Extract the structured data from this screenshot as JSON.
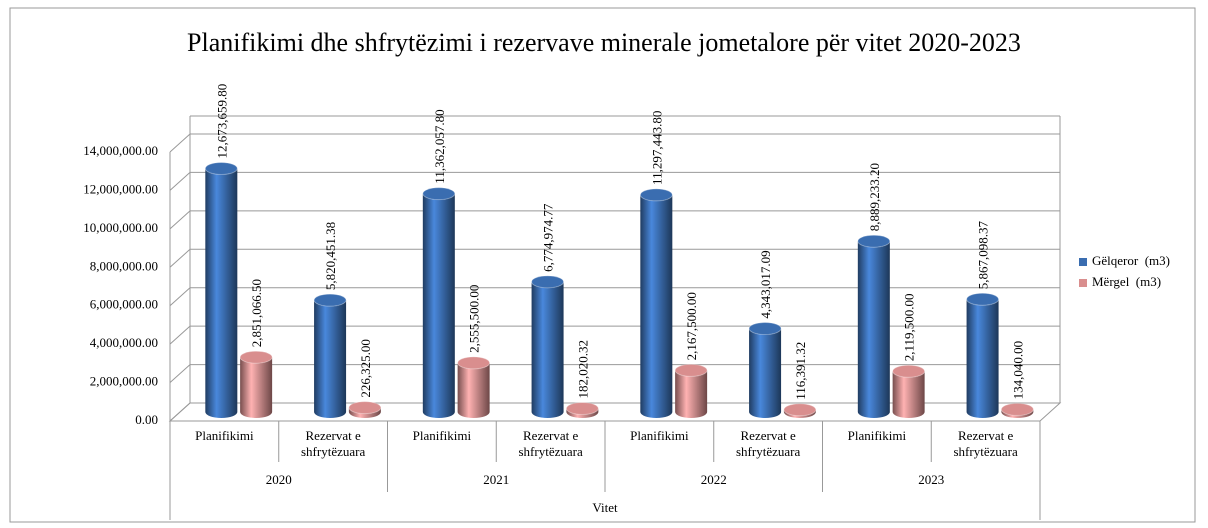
{
  "chart_data": {
    "type": "bar3d",
    "title": "Planifikimi dhe shfrytëzimi i rezervave minerale jometalore për vitet 2020-2023",
    "x_label": "Vitet",
    "categories": [
      "Planifikimi",
      "Rezervat e shfrytëzuara",
      "Planifikimi",
      "Rezervat e shfrytëzuara",
      "Planifikimi",
      "Rezervat e shfrytëzuara",
      "Planifikimi",
      "Rezervat e shfrytëzuara"
    ],
    "groups": [
      "2020",
      "2021",
      "2022",
      "2023"
    ],
    "series": [
      {
        "name": "Gëlqeror  (m3)",
        "color": "#3a6db0",
        "values": [
          12673659.8,
          5820451.38,
          11362057.8,
          6774974.77,
          11297443.8,
          4343017.09,
          8889233.2,
          5867098.37
        ],
        "value_labels": [
          "12,673,659.80",
          "5,820,451.38",
          "11,362,057.80",
          "6,774,974.77",
          "11,297,443.80",
          "4,343,017.09",
          "8,889,233.20",
          "5,867,098.37"
        ]
      },
      {
        "name": "Mërgel  (m3)",
        "color": "#d98e8e",
        "values": [
          2851066.5,
          226325,
          2555500,
          182020.32,
          2167500,
          116391.32,
          2119500,
          134040
        ],
        "value_labels": [
          "2,851,066.50",
          "226,325.00",
          "2,555,500.00",
          "182,020.32",
          "2,167,500.00",
          "116,391.32",
          "2,119,500.00",
          "134,040.00"
        ]
      }
    ],
    "ylim": [
      0,
      14000000
    ],
    "yticks": [
      {
        "value": 0,
        "label": "0.00"
      },
      {
        "value": 2000000,
        "label": "2,000,000.00"
      },
      {
        "value": 4000000,
        "label": "4,000,000.00"
      },
      {
        "value": 6000000,
        "label": "6,000,000.00"
      },
      {
        "value": 8000000,
        "label": "8,000,000.00"
      },
      {
        "value": 10000000,
        "label": "10,000,000.00"
      },
      {
        "value": 12000000,
        "label": "12,000,000.00"
      },
      {
        "value": 14000000,
        "label": "14,000,000.00"
      }
    ],
    "grid": true,
    "legend": "right"
  }
}
